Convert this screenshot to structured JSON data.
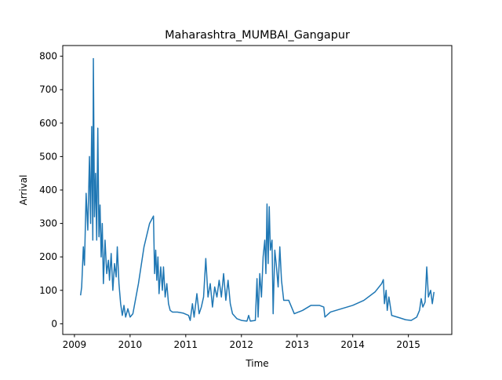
{
  "chart_data": {
    "type": "line",
    "title": "Maharashtra_MUMBAI_Gangapur",
    "x_label": "Time",
    "y_label": "Arrival",
    "xlim": [
      2008.79,
      2015.78
    ],
    "ylim": [
      -32,
      832
    ],
    "xticks": [
      2009,
      2010,
      2011,
      2012,
      2013,
      2014,
      2015
    ],
    "yticks": [
      0,
      100,
      200,
      300,
      400,
      500,
      600,
      700,
      800
    ],
    "grid": false,
    "series": [
      {
        "name": "Arrival",
        "color": "#1f77b4",
        "x": [
          2009.11,
          2009.13,
          2009.16,
          2009.18,
          2009.21,
          2009.24,
          2009.27,
          2009.29,
          2009.31,
          2009.33,
          2009.34,
          2009.36,
          2009.38,
          2009.4,
          2009.42,
          2009.44,
          2009.46,
          2009.48,
          2009.5,
          2009.52,
          2009.55,
          2009.58,
          2009.61,
          2009.63,
          2009.66,
          2009.69,
          2009.72,
          2009.75,
          2009.77,
          2009.8,
          2009.83,
          2009.86,
          2009.89,
          2009.92,
          2009.96,
          2010.0,
          2010.05,
          2010.15,
          2010.25,
          2010.35,
          2010.42,
          2010.44,
          2010.46,
          2010.48,
          2010.5,
          2010.52,
          2010.55,
          2010.58,
          2010.6,
          2010.63,
          2010.66,
          2010.69,
          2010.72,
          2010.76,
          2010.85,
          2010.95,
          2011.05,
          2011.08,
          2011.12,
          2011.15,
          2011.2,
          2011.24,
          2011.28,
          2011.32,
          2011.36,
          2011.4,
          2011.44,
          2011.48,
          2011.52,
          2011.56,
          2011.6,
          2011.64,
          2011.68,
          2011.72,
          2011.76,
          2011.8,
          2011.84,
          2011.92,
          2012.0,
          2012.1,
          2012.13,
          2012.16,
          2012.25,
          2012.28,
          2012.3,
          2012.33,
          2012.36,
          2012.39,
          2012.42,
          2012.44,
          2012.46,
          2012.48,
          2012.5,
          2012.52,
          2012.55,
          2012.57,
          2012.6,
          2012.63,
          2012.66,
          2012.69,
          2012.72,
          2012.76,
          2012.85,
          2012.95,
          2013.1,
          2013.25,
          2013.4,
          2013.48,
          2013.5,
          2013.6,
          2013.8,
          2014.0,
          2014.2,
          2014.4,
          2014.52,
          2014.55,
          2014.57,
          2014.6,
          2014.62,
          2014.65,
          2014.7,
          2014.8,
          2014.95,
          2015.05,
          2015.15,
          2015.2,
          2015.23,
          2015.26,
          2015.3,
          2015.33,
          2015.36,
          2015.4,
          2015.43,
          2015.46
        ],
        "values": [
          85,
          110,
          230,
          175,
          390,
          280,
          500,
          300,
          590,
          250,
          793,
          320,
          450,
          250,
          585,
          260,
          355,
          200,
          300,
          120,
          250,
          150,
          190,
          130,
          210,
          100,
          180,
          140,
          230,
          120,
          60,
          25,
          55,
          20,
          45,
          20,
          30,
          120,
          230,
          300,
          322,
          150,
          220,
          130,
          200,
          90,
          170,
          100,
          170,
          80,
          120,
          60,
          40,
          35,
          35,
          32,
          25,
          10,
          60,
          20,
          90,
          30,
          50,
          80,
          195,
          80,
          120,
          50,
          110,
          80,
          130,
          80,
          150,
          70,
          130,
          60,
          30,
          15,
          10,
          8,
          25,
          8,
          10,
          135,
          20,
          150,
          80,
          200,
          250,
          150,
          358,
          180,
          350,
          220,
          250,
          30,
          220,
          170,
          110,
          230,
          130,
          70,
          70,
          30,
          40,
          55,
          55,
          50,
          20,
          35,
          45,
          55,
          70,
          95,
          120,
          132,
          60,
          100,
          40,
          80,
          25,
          20,
          12,
          10,
          20,
          40,
          75,
          50,
          65,
          170,
          80,
          100,
          60,
          95
        ]
      }
    ]
  }
}
